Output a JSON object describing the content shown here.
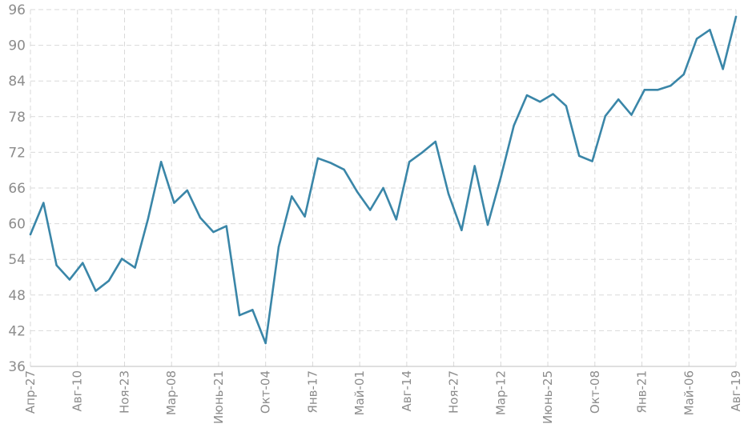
{
  "chart_data": {
    "type": "line",
    "title": "",
    "xlabel": "",
    "ylabel": "",
    "ylim": [
      36,
      96
    ],
    "y_ticks": [
      36,
      42,
      48,
      54,
      60,
      66,
      72,
      78,
      84,
      90,
      96
    ],
    "x_tick_labels": [
      "Апр-27",
      "Авг-10",
      "Ноя-23",
      "Мар-08",
      "Июнь-21",
      "Окт-04",
      "Янв-17",
      "Май-01",
      "Авг-14",
      "Ноя-27",
      "Мар-12",
      "Июнь-25",
      "Окт-08",
      "Янв-21",
      "Май-06",
      "Авг-19"
    ],
    "grid": true,
    "series_color": "#3a86a8",
    "series": [
      {
        "values": [
          58.2,
          63.5,
          53.0,
          50.6,
          53.4,
          48.7,
          50.4,
          54.1,
          52.6,
          60.8,
          70.4,
          63.5,
          65.6,
          61.0,
          58.6,
          59.6,
          44.6,
          45.5,
          39.9,
          56.1,
          64.6,
          61.2,
          71.0,
          70.2,
          69.1,
          65.4,
          62.3,
          66.0,
          60.7,
          70.4,
          72.0,
          73.8,
          65.0,
          58.9,
          69.7,
          59.8,
          67.8,
          76.5,
          81.6,
          80.5,
          81.8,
          79.8,
          71.4,
          70.5,
          78.1,
          80.9,
          78.3,
          82.5,
          82.5,
          83.2,
          85.1,
          91.1,
          92.6,
          86.0,
          94.8
        ]
      }
    ]
  }
}
